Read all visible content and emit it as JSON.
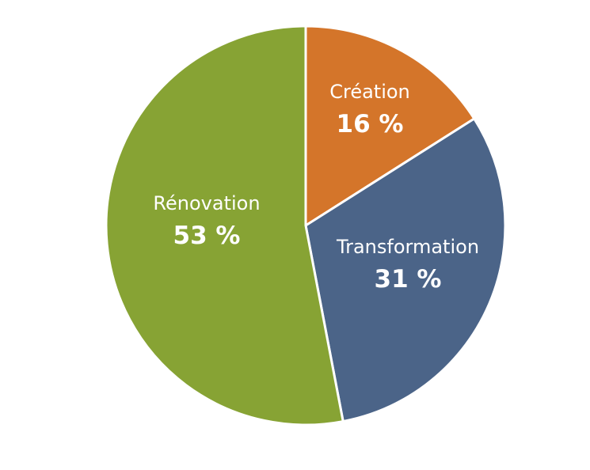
{
  "chart_data": {
    "type": "pie",
    "title": "",
    "start_angle_deg": 0,
    "direction": "clockwise",
    "slices": [
      {
        "label": "Création",
        "value": 16,
        "value_label": "16 %",
        "color": "#d4752a"
      },
      {
        "label": "Transformation",
        "value": 31,
        "value_label": "31 %",
        "color": "#4b6488"
      },
      {
        "label": "Rénovation",
        "value": 53,
        "value_label": "53 %",
        "color": "#87a334"
      }
    ]
  }
}
